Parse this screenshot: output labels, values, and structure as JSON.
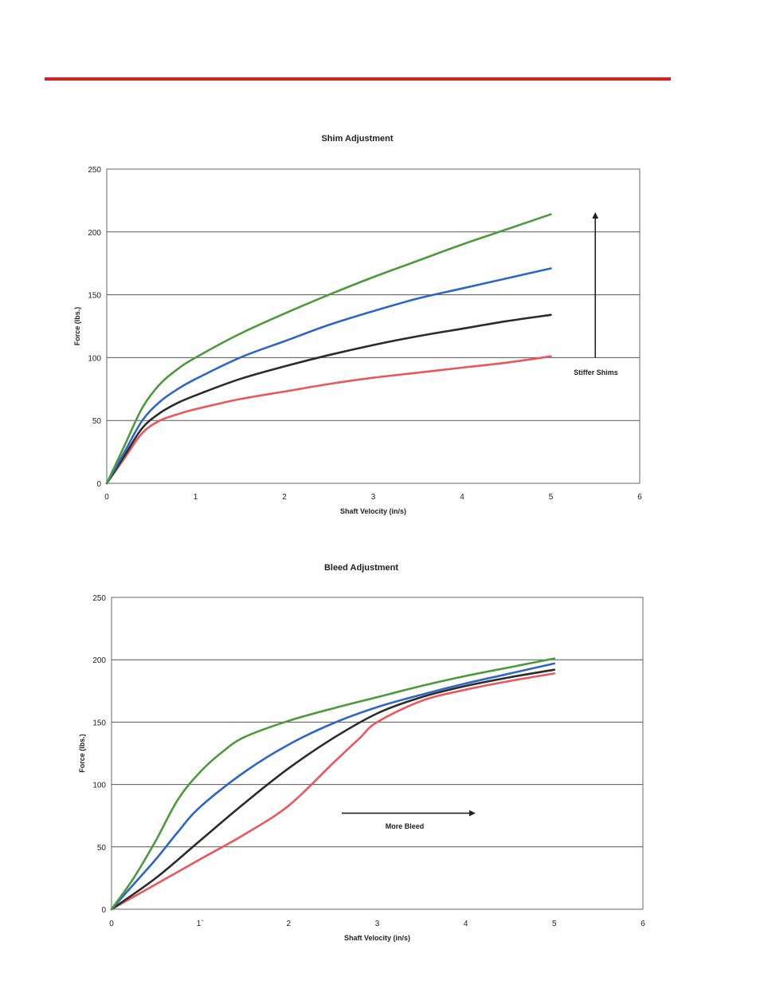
{
  "colors": {
    "header_rule": "#e3191b"
  },
  "chart_data": [
    {
      "type": "line",
      "title": "Shim Adjustment",
      "xlabel": "Shaft Velocity (in/s)",
      "ylabel": "Force (lbs.)",
      "xlim": [
        0,
        6
      ],
      "ylim": [
        0,
        250
      ],
      "xticks": [
        "0",
        "1",
        "2",
        "3",
        "4",
        "5",
        "6"
      ],
      "yticks": [
        "0",
        "50",
        "100",
        "150",
        "200",
        "250"
      ],
      "grid": true,
      "legend": "none",
      "annotation": {
        "text": "Stiffer Shims",
        "arrow": "up",
        "x": 5.5,
        "y_from": 100,
        "y_to": 215
      },
      "series": [
        {
          "color": "#e8575c",
          "x": [
            0,
            0.2,
            0.4,
            0.6,
            0.8,
            1.0,
            1.5,
            2.0,
            2.5,
            3.0,
            3.5,
            4.0,
            4.5,
            5.0
          ],
          "y": [
            0,
            20,
            40,
            50,
            55,
            59,
            67,
            73,
            79,
            84,
            88,
            92,
            96,
            101
          ]
        },
        {
          "color": "#2b2b2b",
          "x": [
            0,
            0.2,
            0.4,
            0.6,
            0.8,
            1.0,
            1.5,
            2.0,
            2.5,
            3.0,
            3.5,
            4.0,
            4.5,
            5.0
          ],
          "y": [
            0,
            22,
            44,
            56,
            64,
            70,
            83,
            93,
            102,
            110,
            117,
            123,
            129,
            134
          ]
        },
        {
          "color": "#2e66c4",
          "x": [
            0,
            0.2,
            0.4,
            0.6,
            0.8,
            1.0,
            1.5,
            2.0,
            2.5,
            3.0,
            3.5,
            4.0,
            4.5,
            5.0
          ],
          "y": [
            0,
            25,
            50,
            65,
            75,
            83,
            100,
            113,
            126,
            137,
            147,
            155,
            163,
            171
          ]
        },
        {
          "color": "#4c9a3c",
          "x": [
            0,
            0.2,
            0.4,
            0.6,
            0.8,
            1.0,
            1.5,
            2.0,
            2.5,
            3.0,
            3.5,
            4.0,
            4.5,
            5.0
          ],
          "y": [
            0,
            30,
            60,
            79,
            91,
            100,
            119,
            135,
            150,
            164,
            177,
            190,
            202,
            214
          ]
        }
      ]
    },
    {
      "type": "line",
      "title": "Bleed Adjustment",
      "xlabel": "Shaft Velocity (in/s)",
      "ylabel": "Force (lbs.)",
      "xlim": [
        0,
        6
      ],
      "ylim": [
        0,
        250
      ],
      "xticks": [
        "0",
        "1`",
        "2",
        "3",
        "4",
        "5",
        "6"
      ],
      "yticks": [
        "0",
        "50",
        "100",
        "150",
        "200",
        "250"
      ],
      "grid": true,
      "legend": "none",
      "annotation": {
        "text": "More Bleed",
        "arrow": "right",
        "y": 77,
        "x_from": 2.6,
        "x_to": 4.1
      },
      "series": [
        {
          "color": "#e8575c",
          "x": [
            0,
            0.5,
            1.0,
            1.5,
            2.0,
            2.5,
            2.8,
            3.0,
            3.5,
            4.0,
            4.5,
            5.0
          ],
          "y": [
            0,
            20,
            40,
            60,
            83,
            117,
            137,
            150,
            167,
            176,
            183,
            189
          ]
        },
        {
          "color": "#2b2b2b",
          "x": [
            0,
            0.5,
            1.0,
            1.5,
            2.0,
            2.5,
            3.0,
            3.5,
            4.0,
            4.5,
            5.0
          ],
          "y": [
            0,
            25,
            55,
            85,
            113,
            137,
            157,
            170,
            179,
            186,
            192
          ]
        },
        {
          "color": "#2e66c4",
          "x": [
            0,
            0.25,
            0.5,
            0.75,
            1.0,
            1.5,
            2.0,
            2.5,
            3.0,
            3.5,
            4.0,
            4.5,
            5.0
          ],
          "y": [
            0,
            20,
            40,
            62,
            82,
            110,
            132,
            149,
            162,
            172,
            181,
            189,
            197
          ]
        },
        {
          "color": "#4c9a3c",
          "x": [
            0,
            0.25,
            0.5,
            0.75,
            1.0,
            1.25,
            1.5,
            2.0,
            2.5,
            3.0,
            3.5,
            4.0,
            4.5,
            5.0
          ],
          "y": [
            0,
            25,
            55,
            88,
            110,
            126,
            138,
            151,
            161,
            170,
            179,
            187,
            194,
            201
          ]
        }
      ]
    }
  ]
}
